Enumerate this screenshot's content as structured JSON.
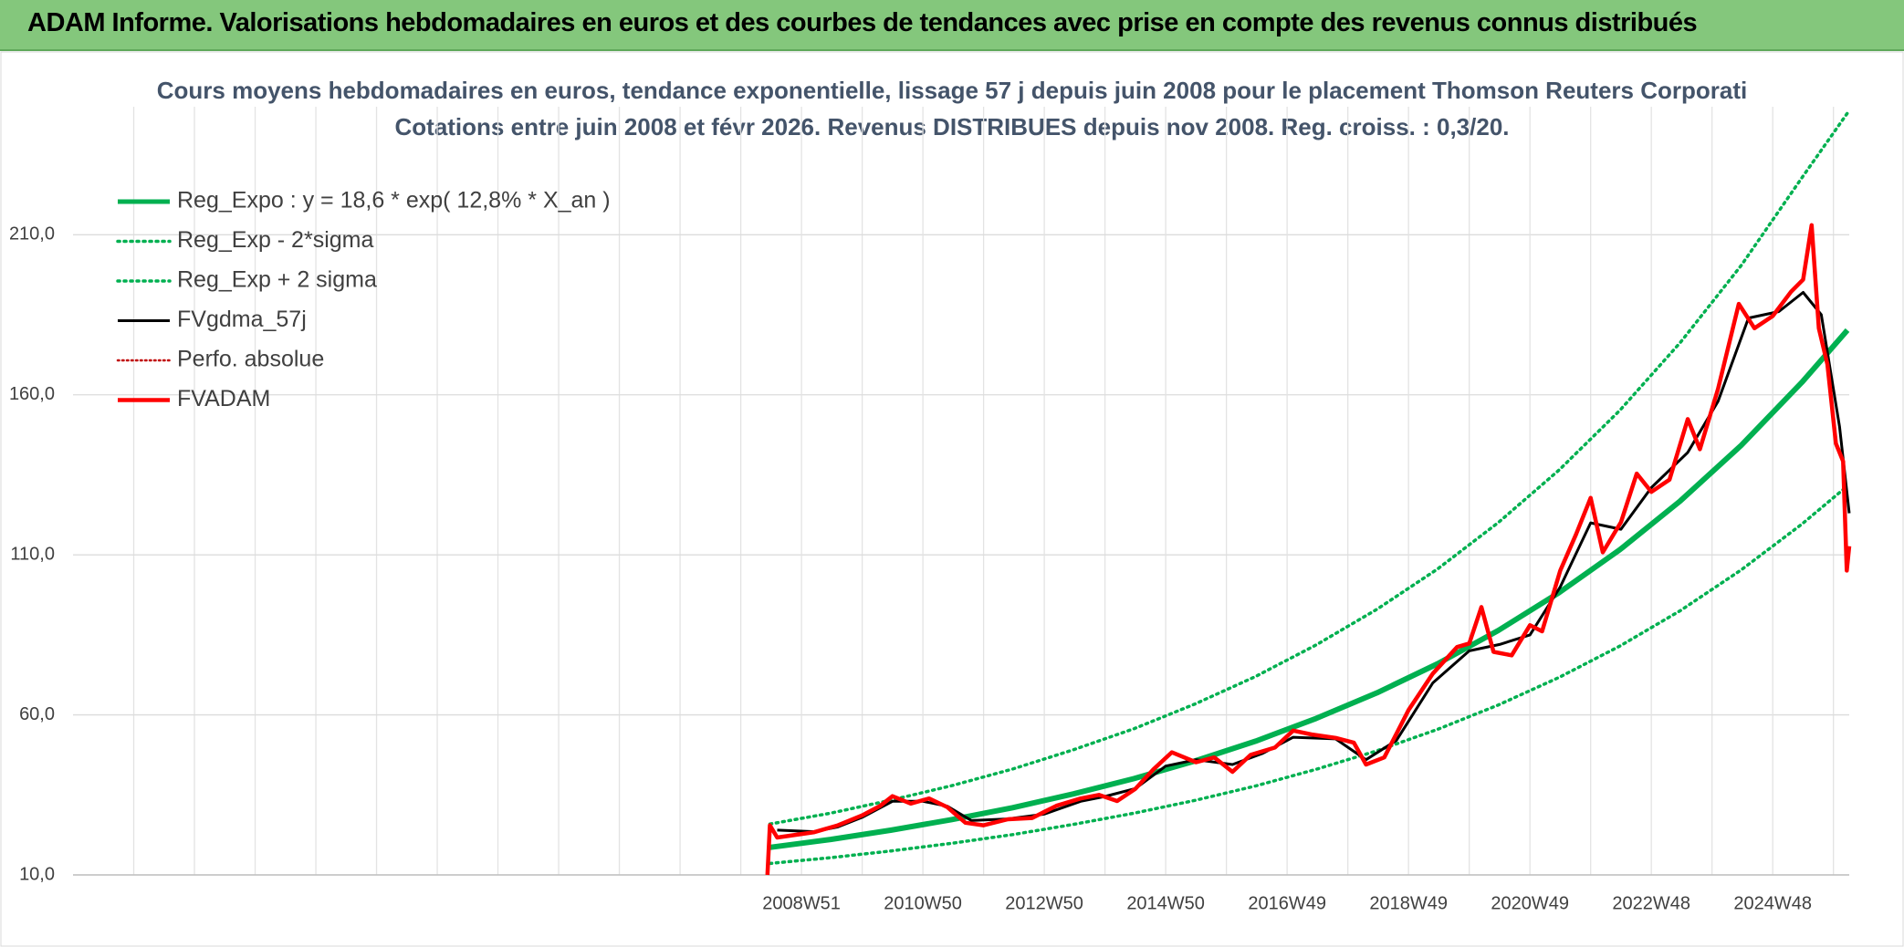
{
  "header": {
    "title": "ADAM Informe. Valorisations hebdomadaires en euros et des courbes de tendances avec prise en compte des revenus connus distribués"
  },
  "chart_data": {
    "type": "line",
    "title": "Cours moyens hebdomadaires en euros, tendance exponentielle, lissage 57 j depuis juin 2008 pour le placement Thomson Reuters Corporati",
    "subtitle": "Cotations entre juin 2008 et févr 2026. Revenus DISTRIBUES depuis nov 2008. Reg. croiss. : 0,3/20.",
    "xlim": [
      1996.97,
      2026.23
    ],
    "xticks": [
      {
        "value": 2008.97,
        "label": "2008W51"
      },
      {
        "value": 2010.97,
        "label": "2010W50"
      },
      {
        "value": 2012.97,
        "label": "2012W50"
      },
      {
        "value": 2014.97,
        "label": "2014W50"
      },
      {
        "value": 2016.97,
        "label": "2016W49"
      },
      {
        "value": 2018.97,
        "label": "2018W49"
      },
      {
        "value": 2020.97,
        "label": "2020W49"
      },
      {
        "value": 2022.97,
        "label": "2022W48"
      },
      {
        "value": 2024.97,
        "label": "2024W48"
      }
    ],
    "ylim": [
      10,
      250
    ],
    "yticks": [
      {
        "value": 10,
        "label": "10,0"
      },
      {
        "value": 60,
        "label": "60,0"
      },
      {
        "value": 110,
        "label": "110,0"
      },
      {
        "value": 160,
        "label": "160,0"
      },
      {
        "value": 210,
        "label": "210,0"
      }
    ],
    "grid": true,
    "legend": "top-left",
    "series": [
      {
        "name": "Reg_Expo : y = 18,6 * exp( 12,8% *  X_an )",
        "color": "#00b050",
        "style": "solid",
        "width": 6,
        "x": [
          2008.45,
          2009.45,
          2010.45,
          2011.45,
          2012.45,
          2013.45,
          2014.45,
          2015.45,
          2016.45,
          2017.45,
          2018.45,
          2019.45,
          2020.45,
          2021.45,
          2022.45,
          2023.45,
          2024.45,
          2025.45,
          2026.2
        ],
        "values": [
          18.6,
          21.1,
          24.0,
          27.3,
          31.0,
          35.3,
          40.1,
          45.6,
          51.8,
          58.9,
          66.9,
          76.0,
          86.4,
          98.2,
          111.6,
          126.9,
          144.2,
          163.9,
          180.2
        ]
      },
      {
        "name": "Reg_Exp - 2*sigma",
        "color": "#00b050",
        "style": "dotted",
        "width": 3.5,
        "x": [
          2008.45,
          2009.45,
          2010.45,
          2011.45,
          2012.45,
          2013.45,
          2014.45,
          2015.45,
          2016.45,
          2017.45,
          2018.45,
          2019.45,
          2020.45,
          2021.45,
          2022.45,
          2023.45,
          2024.45,
          2025.45,
          2026.2
        ],
        "values": [
          13.6,
          15.4,
          17.5,
          19.9,
          22.6,
          25.8,
          29.3,
          33.3,
          37.8,
          43.0,
          48.8,
          55.5,
          63.1,
          71.7,
          81.5,
          92.6,
          105.3,
          119.6,
          131.5
        ]
      },
      {
        "name": "Reg_Exp + 2 sigma",
        "color": "#00b050",
        "style": "dotted",
        "width": 3.5,
        "x": [
          2008.45,
          2009.45,
          2010.45,
          2011.45,
          2012.45,
          2013.45,
          2014.45,
          2015.45,
          2016.45,
          2017.45,
          2018.45,
          2019.45,
          2020.45,
          2021.45,
          2022.45,
          2023.45,
          2024.45,
          2025.45,
          2026.2
        ],
        "values": [
          25.9,
          29.3,
          33.4,
          37.9,
          43.1,
          49.1,
          55.7,
          63.4,
          72.0,
          81.9,
          93.0,
          105.6,
          120.1,
          136.5,
          155.1,
          176.4,
          200.4,
          227.8,
          248
        ]
      },
      {
        "name": "FVgdma_57j",
        "color": "#000000",
        "style": "solid",
        "width": 3,
        "x": [
          2008.57,
          2009.17,
          2009.57,
          2009.97,
          2010.47,
          2010.97,
          2011.37,
          2011.77,
          2012.37,
          2012.97,
          2013.57,
          2013.97,
          2014.47,
          2014.97,
          2015.47,
          2016.07,
          2016.57,
          2017.07,
          2017.77,
          2018.27,
          2018.77,
          2019.37,
          2019.97,
          2020.47,
          2020.97,
          2021.47,
          2021.97,
          2022.47,
          2022.97,
          2023.57,
          2024.07,
          2024.57,
          2025.07,
          2025.47,
          2025.77,
          2026.07,
          2026.23
        ],
        "values": [
          24,
          23.5,
          25,
          28,
          33,
          33,
          31.5,
          27,
          27.5,
          29,
          33,
          34.5,
          37,
          44,
          46,
          44.5,
          48,
          53,
          52.5,
          46,
          52,
          70,
          80,
          82,
          85,
          100,
          120,
          118,
          131,
          142,
          158,
          184,
          186,
          192,
          185,
          150,
          123
        ]
      },
      {
        "name": "Perfo. absolue",
        "color": "#c00000",
        "style": "dotted",
        "width": 2.5,
        "x": [],
        "values": []
      },
      {
        "name": "FVADAM",
        "color": "#ff0000",
        "style": "solid",
        "width": 4.5,
        "x": [
          2008.41,
          2008.45,
          2008.57,
          2008.87,
          2009.17,
          2009.57,
          2009.97,
          2010.27,
          2010.47,
          2010.77,
          2011.07,
          2011.37,
          2011.67,
          2011.97,
          2012.37,
          2012.77,
          2013.17,
          2013.57,
          2013.87,
          2014.17,
          2014.47,
          2014.77,
          2015.07,
          2015.47,
          2015.77,
          2016.07,
          2016.37,
          2016.77,
          2017.07,
          2017.37,
          2017.77,
          2018.07,
          2018.27,
          2018.57,
          2018.97,
          2019.37,
          2019.77,
          2019.97,
          2020.17,
          2020.37,
          2020.67,
          2020.97,
          2021.17,
          2021.47,
          2021.73,
          2021.97,
          2022.17,
          2022.47,
          2022.73,
          2022.97,
          2023.27,
          2023.57,
          2023.77,
          2024.07,
          2024.41,
          2024.67,
          2024.97,
          2025.27,
          2025.47,
          2025.61,
          2025.73,
          2025.87,
          2026.01,
          2026.13,
          2026.19,
          2026.23
        ],
        "values": [
          10,
          25.5,
          21.7,
          22.5,
          23.3,
          25.5,
          28.6,
          31.6,
          34.6,
          32.3,
          33.9,
          31.2,
          26.3,
          25.5,
          27.4,
          27.8,
          31.6,
          33.9,
          35.0,
          33.1,
          36.9,
          43.0,
          48.3,
          45.2,
          46.7,
          42.2,
          47.5,
          49.8,
          55.1,
          53.9,
          52.8,
          51.3,
          44.5,
          46.7,
          61.5,
          72.9,
          81.2,
          82.3,
          93.7,
          79.7,
          78.6,
          88.0,
          86.1,
          105.1,
          116.4,
          127.8,
          110.8,
          120.2,
          135.4,
          129.7,
          133.5,
          152.4,
          143.0,
          161.9,
          188.4,
          180.8,
          184.6,
          192.2,
          196.0,
          213.0,
          180.8,
          169.5,
          144.8,
          139.2,
          105.1,
          112.7
        ]
      }
    ]
  }
}
